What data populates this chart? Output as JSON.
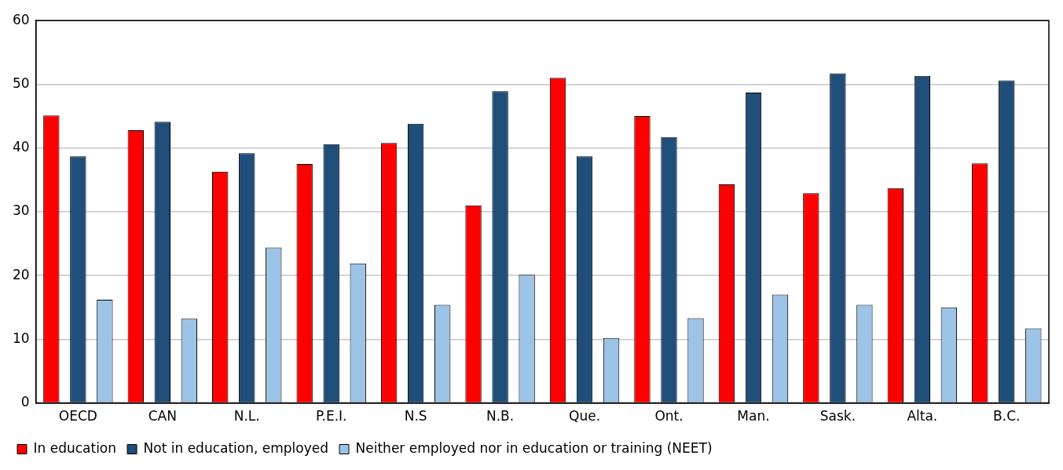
{
  "chart_data": {
    "type": "bar",
    "categories": [
      "OECD",
      "CAN",
      "N.L.",
      "P.E.I.",
      "N.S",
      "N.B.",
      "Que.",
      "Ont.",
      "Man.",
      "Sask.",
      "Alta.",
      "B.C."
    ],
    "series": [
      {
        "name": "In education",
        "color": "#ff0000",
        "values": [
          45.1,
          42.8,
          36.3,
          37.5,
          40.8,
          31.0,
          51.0,
          45.0,
          34.3,
          32.9,
          33.7,
          37.6
        ]
      },
      {
        "name": "Not in education, employed",
        "color": "#1f4e79",
        "values": [
          38.7,
          44.1,
          39.2,
          40.6,
          43.8,
          48.9,
          38.7,
          41.7,
          48.7,
          51.7,
          51.3,
          50.6
        ]
      },
      {
        "name": "Neither employed nor in education or training (NEET)",
        "color": "#9dc3e6",
        "values": [
          16.2,
          13.2,
          24.4,
          21.9,
          15.4,
          20.1,
          10.2,
          13.3,
          17.0,
          15.4,
          15.0,
          11.7
        ]
      }
    ],
    "ylim": [
      0,
      60
    ],
    "yticks": [
      0,
      10,
      20,
      30,
      40,
      50,
      60
    ],
    "grid": "y",
    "legend": "bottom"
  }
}
